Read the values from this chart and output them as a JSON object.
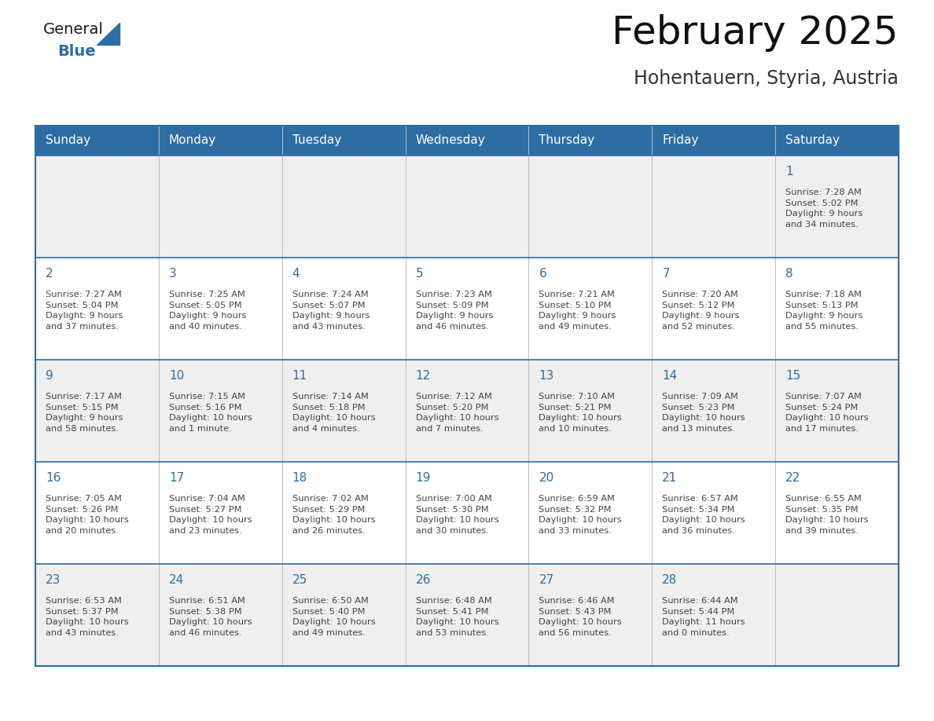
{
  "title": "February 2025",
  "subtitle": "Hohentauern, Styria, Austria",
  "days_of_week": [
    "Sunday",
    "Monday",
    "Tuesday",
    "Wednesday",
    "Thursday",
    "Friday",
    "Saturday"
  ],
  "header_bg": "#2E6DA4",
  "header_text": "#FFFFFF",
  "cell_bg_odd": "#EFEFEF",
  "cell_bg_even": "#FFFFFF",
  "border_color": "#2E6DA4",
  "day_number_color": "#2E6DA4",
  "text_color": "#444444",
  "logo_general_color": "#1a1a1a",
  "logo_blue_color": "#2E6DA4",
  "divider_color": "#BBBBBB",
  "calendar_data": [
    [
      null,
      null,
      null,
      null,
      null,
      null,
      {
        "day": "1",
        "sunrise": "7:28 AM",
        "sunset": "5:02 PM",
        "daylight": "9 hours\nand 34 minutes."
      }
    ],
    [
      {
        "day": "2",
        "sunrise": "7:27 AM",
        "sunset": "5:04 PM",
        "daylight": "9 hours\nand 37 minutes."
      },
      {
        "day": "3",
        "sunrise": "7:25 AM",
        "sunset": "5:05 PM",
        "daylight": "9 hours\nand 40 minutes."
      },
      {
        "day": "4",
        "sunrise": "7:24 AM",
        "sunset": "5:07 PM",
        "daylight": "9 hours\nand 43 minutes."
      },
      {
        "day": "5",
        "sunrise": "7:23 AM",
        "sunset": "5:09 PM",
        "daylight": "9 hours\nand 46 minutes."
      },
      {
        "day": "6",
        "sunrise": "7:21 AM",
        "sunset": "5:10 PM",
        "daylight": "9 hours\nand 49 minutes."
      },
      {
        "day": "7",
        "sunrise": "7:20 AM",
        "sunset": "5:12 PM",
        "daylight": "9 hours\nand 52 minutes."
      },
      {
        "day": "8",
        "sunrise": "7:18 AM",
        "sunset": "5:13 PM",
        "daylight": "9 hours\nand 55 minutes."
      }
    ],
    [
      {
        "day": "9",
        "sunrise": "7:17 AM",
        "sunset": "5:15 PM",
        "daylight": "9 hours\nand 58 minutes."
      },
      {
        "day": "10",
        "sunrise": "7:15 AM",
        "sunset": "5:16 PM",
        "daylight": "10 hours\nand 1 minute."
      },
      {
        "day": "11",
        "sunrise": "7:14 AM",
        "sunset": "5:18 PM",
        "daylight": "10 hours\nand 4 minutes."
      },
      {
        "day": "12",
        "sunrise": "7:12 AM",
        "sunset": "5:20 PM",
        "daylight": "10 hours\nand 7 minutes."
      },
      {
        "day": "13",
        "sunrise": "7:10 AM",
        "sunset": "5:21 PM",
        "daylight": "10 hours\nand 10 minutes."
      },
      {
        "day": "14",
        "sunrise": "7:09 AM",
        "sunset": "5:23 PM",
        "daylight": "10 hours\nand 13 minutes."
      },
      {
        "day": "15",
        "sunrise": "7:07 AM",
        "sunset": "5:24 PM",
        "daylight": "10 hours\nand 17 minutes."
      }
    ],
    [
      {
        "day": "16",
        "sunrise": "7:05 AM",
        "sunset": "5:26 PM",
        "daylight": "10 hours\nand 20 minutes."
      },
      {
        "day": "17",
        "sunrise": "7:04 AM",
        "sunset": "5:27 PM",
        "daylight": "10 hours\nand 23 minutes."
      },
      {
        "day": "18",
        "sunrise": "7:02 AM",
        "sunset": "5:29 PM",
        "daylight": "10 hours\nand 26 minutes."
      },
      {
        "day": "19",
        "sunrise": "7:00 AM",
        "sunset": "5:30 PM",
        "daylight": "10 hours\nand 30 minutes."
      },
      {
        "day": "20",
        "sunrise": "6:59 AM",
        "sunset": "5:32 PM",
        "daylight": "10 hours\nand 33 minutes."
      },
      {
        "day": "21",
        "sunrise": "6:57 AM",
        "sunset": "5:34 PM",
        "daylight": "10 hours\nand 36 minutes."
      },
      {
        "day": "22",
        "sunrise": "6:55 AM",
        "sunset": "5:35 PM",
        "daylight": "10 hours\nand 39 minutes."
      }
    ],
    [
      {
        "day": "23",
        "sunrise": "6:53 AM",
        "sunset": "5:37 PM",
        "daylight": "10 hours\nand 43 minutes."
      },
      {
        "day": "24",
        "sunrise": "6:51 AM",
        "sunset": "5:38 PM",
        "daylight": "10 hours\nand 46 minutes."
      },
      {
        "day": "25",
        "sunrise": "6:50 AM",
        "sunset": "5:40 PM",
        "daylight": "10 hours\nand 49 minutes."
      },
      {
        "day": "26",
        "sunrise": "6:48 AM",
        "sunset": "5:41 PM",
        "daylight": "10 hours\nand 53 minutes."
      },
      {
        "day": "27",
        "sunrise": "6:46 AM",
        "sunset": "5:43 PM",
        "daylight": "10 hours\nand 56 minutes."
      },
      {
        "day": "28",
        "sunrise": "6:44 AM",
        "sunset": "5:44 PM",
        "daylight": "11 hours\nand 0 minutes."
      },
      null
    ]
  ]
}
